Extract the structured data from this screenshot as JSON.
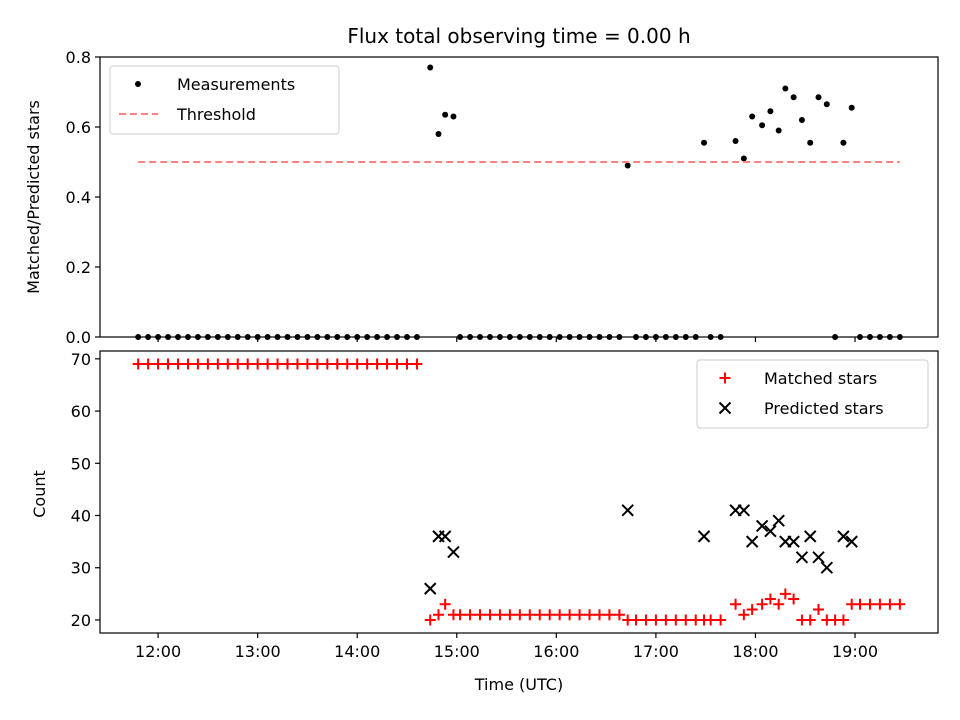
{
  "chart_data": [
    {
      "type": "scatter",
      "title": "Flux total observing time = 0.00 h",
      "xlabel": "",
      "ylabel": "Matched/Predicted stars",
      "xlim": [
        "11:25",
        "19:50"
      ],
      "ylim": [
        0,
        0.8
      ],
      "yticks": [
        "0.0",
        "0.2",
        "0.4",
        "0.6",
        "0.8"
      ],
      "xticks": [
        "12:00",
        "13:00",
        "14:00",
        "15:00",
        "16:00",
        "17:00",
        "18:00",
        "19:00"
      ],
      "legend_position": "upper-left",
      "series": [
        {
          "name": "Measurements",
          "marker": "dot",
          "color": "#000000",
          "points": [
            [
              "11:48",
              0
            ],
            [
              "11:54",
              0
            ],
            [
              "12:00",
              0
            ],
            [
              "12:06",
              0
            ],
            [
              "12:12",
              0
            ],
            [
              "12:18",
              0
            ],
            [
              "12:24",
              0
            ],
            [
              "12:30",
              0
            ],
            [
              "12:36",
              0
            ],
            [
              "12:42",
              0
            ],
            [
              "12:48",
              0
            ],
            [
              "12:54",
              0
            ],
            [
              "13:00",
              0
            ],
            [
              "13:06",
              0
            ],
            [
              "13:12",
              0
            ],
            [
              "13:18",
              0
            ],
            [
              "13:24",
              0
            ],
            [
              "13:30",
              0
            ],
            [
              "13:36",
              0
            ],
            [
              "13:42",
              0
            ],
            [
              "13:48",
              0
            ],
            [
              "13:54",
              0
            ],
            [
              "14:00",
              0
            ],
            [
              "14:06",
              0
            ],
            [
              "14:12",
              0
            ],
            [
              "14:18",
              0
            ],
            [
              "14:24",
              0
            ],
            [
              "14:30",
              0
            ],
            [
              "14:36",
              0
            ],
            [
              "14:44",
              0.77
            ],
            [
              "14:49",
              0.58
            ],
            [
              "14:53",
              0.635
            ],
            [
              "14:58",
              0.63
            ],
            [
              "15:02",
              0
            ],
            [
              "15:08",
              0
            ],
            [
              "15:14",
              0
            ],
            [
              "15:20",
              0
            ],
            [
              "15:26",
              0
            ],
            [
              "15:32",
              0
            ],
            [
              "15:38",
              0
            ],
            [
              "15:44",
              0
            ],
            [
              "15:50",
              0
            ],
            [
              "15:56",
              0
            ],
            [
              "16:02",
              0
            ],
            [
              "16:08",
              0
            ],
            [
              "16:14",
              0
            ],
            [
              "16:20",
              0
            ],
            [
              "16:26",
              0
            ],
            [
              "16:32",
              0
            ],
            [
              "16:38",
              0
            ],
            [
              "16:43",
              0.49
            ],
            [
              "16:48",
              0
            ],
            [
              "16:54",
              0
            ],
            [
              "17:00",
              0
            ],
            [
              "17:06",
              0
            ],
            [
              "17:12",
              0
            ],
            [
              "17:18",
              0
            ],
            [
              "17:24",
              0
            ],
            [
              "17:29",
              0.555
            ],
            [
              "17:33",
              0
            ],
            [
              "17:39",
              0
            ],
            [
              "17:48",
              0.56
            ],
            [
              "17:53",
              0.51
            ],
            [
              "17:58",
              0.63
            ],
            [
              "18:04",
              0.605
            ],
            [
              "18:09",
              0.645
            ],
            [
              "18:14",
              0.59
            ],
            [
              "18:18",
              0.71
            ],
            [
              "18:23",
              0.685
            ],
            [
              "18:28",
              0.62
            ],
            [
              "18:33",
              0.555
            ],
            [
              "18:38",
              0.685
            ],
            [
              "18:43",
              0.665
            ],
            [
              "18:48",
              0
            ],
            [
              "18:53",
              0.555
            ],
            [
              "18:58",
              0.655
            ],
            [
              "19:03",
              0
            ],
            [
              "19:09",
              0
            ],
            [
              "19:15",
              0
            ],
            [
              "19:21",
              0
            ],
            [
              "19:27",
              0
            ]
          ]
        },
        {
          "name": "Threshold",
          "marker": "dashed-line",
          "color": "#ff8080",
          "points": [
            [
              "11:48",
              0.5
            ],
            [
              "19:27",
              0.5
            ]
          ]
        }
      ]
    },
    {
      "type": "scatter",
      "title": "",
      "xlabel": "Time (UTC)",
      "ylabel": "Count",
      "xlim": [
        "11:25",
        "19:50"
      ],
      "ylim": [
        17.5,
        71.5
      ],
      "yticks": [
        "20",
        "30",
        "40",
        "50",
        "60",
        "70"
      ],
      "xticks": [
        "12:00",
        "13:00",
        "14:00",
        "15:00",
        "16:00",
        "17:00",
        "18:00",
        "19:00"
      ],
      "legend_position": "upper-right",
      "series": [
        {
          "name": "Matched stars",
          "marker": "plus",
          "color": "#ff0000",
          "points": [
            [
              "11:48",
              69
            ],
            [
              "11:54",
              69
            ],
            [
              "12:00",
              69
            ],
            [
              "12:06",
              69
            ],
            [
              "12:12",
              69
            ],
            [
              "12:18",
              69
            ],
            [
              "12:24",
              69
            ],
            [
              "12:30",
              69
            ],
            [
              "12:36",
              69
            ],
            [
              "12:42",
              69
            ],
            [
              "12:48",
              69
            ],
            [
              "12:54",
              69
            ],
            [
              "13:00",
              69
            ],
            [
              "13:06",
              69
            ],
            [
              "13:12",
              69
            ],
            [
              "13:18",
              69
            ],
            [
              "13:24",
              69
            ],
            [
              "13:30",
              69
            ],
            [
              "13:36",
              69
            ],
            [
              "13:42",
              69
            ],
            [
              "13:48",
              69
            ],
            [
              "13:54",
              69
            ],
            [
              "14:00",
              69
            ],
            [
              "14:06",
              69
            ],
            [
              "14:12",
              69
            ],
            [
              "14:18",
              69
            ],
            [
              "14:24",
              69
            ],
            [
              "14:30",
              69
            ],
            [
              "14:36",
              69
            ],
            [
              "14:44",
              20
            ],
            [
              "14:49",
              21
            ],
            [
              "14:53",
              23
            ],
            [
              "14:58",
              21
            ],
            [
              "15:02",
              21
            ],
            [
              "15:08",
              21
            ],
            [
              "15:14",
              21
            ],
            [
              "15:20",
              21
            ],
            [
              "15:26",
              21
            ],
            [
              "15:32",
              21
            ],
            [
              "15:38",
              21
            ],
            [
              "15:44",
              21
            ],
            [
              "15:50",
              21
            ],
            [
              "15:56",
              21
            ],
            [
              "16:02",
              21
            ],
            [
              "16:08",
              21
            ],
            [
              "16:14",
              21
            ],
            [
              "16:20",
              21
            ],
            [
              "16:26",
              21
            ],
            [
              "16:32",
              21
            ],
            [
              "16:38",
              21
            ],
            [
              "16:43",
              20
            ],
            [
              "16:48",
              20
            ],
            [
              "16:54",
              20
            ],
            [
              "17:00",
              20
            ],
            [
              "17:06",
              20
            ],
            [
              "17:12",
              20
            ],
            [
              "17:18",
              20
            ],
            [
              "17:24",
              20
            ],
            [
              "17:29",
              20
            ],
            [
              "17:33",
              20
            ],
            [
              "17:39",
              20
            ],
            [
              "17:48",
              23
            ],
            [
              "17:53",
              21
            ],
            [
              "17:58",
              22
            ],
            [
              "18:04",
              23
            ],
            [
              "18:09",
              24
            ],
            [
              "18:14",
              23
            ],
            [
              "18:18",
              25
            ],
            [
              "18:23",
              24
            ],
            [
              "18:28",
              20
            ],
            [
              "18:33",
              20
            ],
            [
              "18:38",
              22
            ],
            [
              "18:43",
              20
            ],
            [
              "18:48",
              20
            ],
            [
              "18:53",
              20
            ],
            [
              "18:58",
              23
            ],
            [
              "19:03",
              23
            ],
            [
              "19:09",
              23
            ],
            [
              "19:15",
              23
            ],
            [
              "19:21",
              23
            ],
            [
              "19:27",
              23
            ]
          ]
        },
        {
          "name": "Predicted stars",
          "marker": "x",
          "color": "#000000",
          "points": [
            [
              "14:44",
              26
            ],
            [
              "14:49",
              36
            ],
            [
              "14:53",
              36
            ],
            [
              "14:58",
              33
            ],
            [
              "16:43",
              41
            ],
            [
              "17:29",
              36
            ],
            [
              "17:48",
              41
            ],
            [
              "17:53",
              41
            ],
            [
              "17:58",
              35
            ],
            [
              "18:04",
              38
            ],
            [
              "18:09",
              37
            ],
            [
              "18:14",
              39
            ],
            [
              "18:18",
              35
            ],
            [
              "18:23",
              35
            ],
            [
              "18:28",
              32
            ],
            [
              "18:33",
              36
            ],
            [
              "18:38",
              32
            ],
            [
              "18:43",
              30
            ],
            [
              "18:53",
              36
            ],
            [
              "18:58",
              35
            ]
          ]
        }
      ]
    }
  ]
}
